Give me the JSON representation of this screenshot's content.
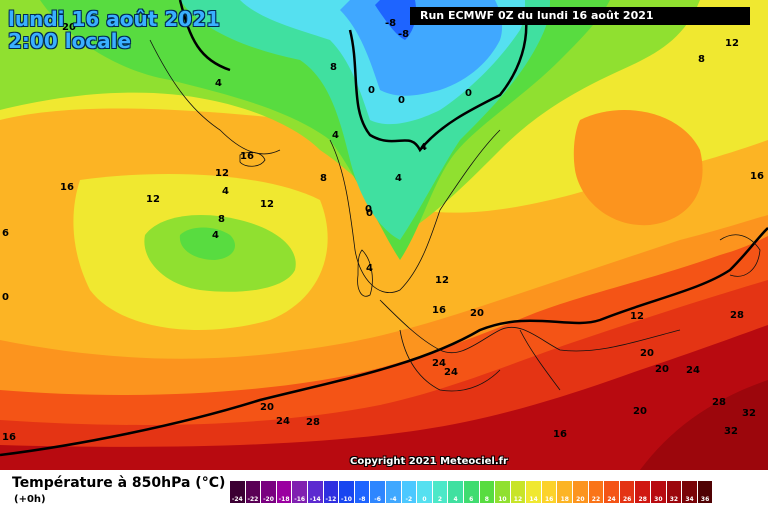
{
  "map": {
    "title_date": "lundi 16 août 2021",
    "title_time": "2:00 locale",
    "run_info": "Run ECMWF 0Z du lundi 16 août 2021",
    "copyright": "Copyright 2021 Meteociel.fr",
    "contour_labels": [
      {
        "text": "20"
      },
      {
        "text": "4"
      },
      {
        "text": "4"
      },
      {
        "text": "4"
      },
      {
        "text": "8"
      },
      {
        "text": "-8"
      },
      {
        "text": "-8"
      },
      {
        "text": "0"
      },
      {
        "text": "0"
      },
      {
        "text": "0"
      },
      {
        "text": "0"
      },
      {
        "text": "12"
      },
      {
        "text": "8"
      },
      {
        "text": "16"
      },
      {
        "text": "12"
      },
      {
        "text": "16"
      },
      {
        "text": "12"
      },
      {
        "text": "12"
      },
      {
        "text": "8"
      },
      {
        "text": "4"
      },
      {
        "text": "4"
      },
      {
        "text": "8"
      },
      {
        "text": "4"
      },
      {
        "text": "0"
      },
      {
        "text": "4"
      },
      {
        "text": "16"
      },
      {
        "text": "12"
      },
      {
        "text": "16"
      },
      {
        "text": "20"
      },
      {
        "text": "12"
      },
      {
        "text": "24"
      },
      {
        "text": "24"
      },
      {
        "text": "28"
      },
      {
        "text": "20"
      },
      {
        "text": "20"
      },
      {
        "text": "24"
      },
      {
        "text": "20"
      },
      {
        "text": "20"
      },
      {
        "text": "24"
      },
      {
        "text": "28"
      },
      {
        "text": "16"
      },
      {
        "text": "28"
      },
      {
        "text": "32"
      },
      {
        "text": "32"
      },
      {
        "text": "16"
      },
      {
        "text": "6"
      },
      {
        "text": "0"
      }
    ]
  },
  "legend": {
    "variable": "Température à 850hPa (°C)",
    "lead_time": "(+0h)",
    "scale": [
      {
        "label": "-24",
        "color": "#3c0033"
      },
      {
        "label": "-22",
        "color": "#5a0055"
      },
      {
        "label": "-20",
        "color": "#7a0080"
      },
      {
        "label": "-18",
        "color": "#9a00a0"
      },
      {
        "label": "-16",
        "color": "#8020b0"
      },
      {
        "label": "-14",
        "color": "#5c2ad0"
      },
      {
        "label": "-12",
        "color": "#2f2fe0"
      },
      {
        "label": "-10",
        "color": "#1846f0"
      },
      {
        "label": "-8",
        "color": "#1e64ff"
      },
      {
        "label": "-6",
        "color": "#2e86ff"
      },
      {
        "label": "-4",
        "color": "#40a8ff"
      },
      {
        "label": "-2",
        "color": "#4cc8ff"
      },
      {
        "label": "0",
        "color": "#55e0f0"
      },
      {
        "label": "2",
        "color": "#4ce8c8"
      },
      {
        "label": "4",
        "color": "#40e0a0"
      },
      {
        "label": "6",
        "color": "#40dc70"
      },
      {
        "label": "8",
        "color": "#58dc40"
      },
      {
        "label": "10",
        "color": "#90e030"
      },
      {
        "label": "12",
        "color": "#c8e428"
      },
      {
        "label": "14",
        "color": "#f0e830"
      },
      {
        "label": "16",
        "color": "#fcd22a"
      },
      {
        "label": "18",
        "color": "#fcb424"
      },
      {
        "label": "20",
        "color": "#fc941e"
      },
      {
        "label": "22",
        "color": "#fa7418"
      },
      {
        "label": "24",
        "color": "#f45416"
      },
      {
        "label": "26",
        "color": "#e43414"
      },
      {
        "label": "28",
        "color": "#d01812"
      },
      {
        "label": "30",
        "color": "#b80a10"
      },
      {
        "label": "32",
        "color": "#9c060c"
      },
      {
        "label": "34",
        "color": "#7a0408"
      },
      {
        "label": "36",
        "color": "#500204"
      }
    ]
  }
}
